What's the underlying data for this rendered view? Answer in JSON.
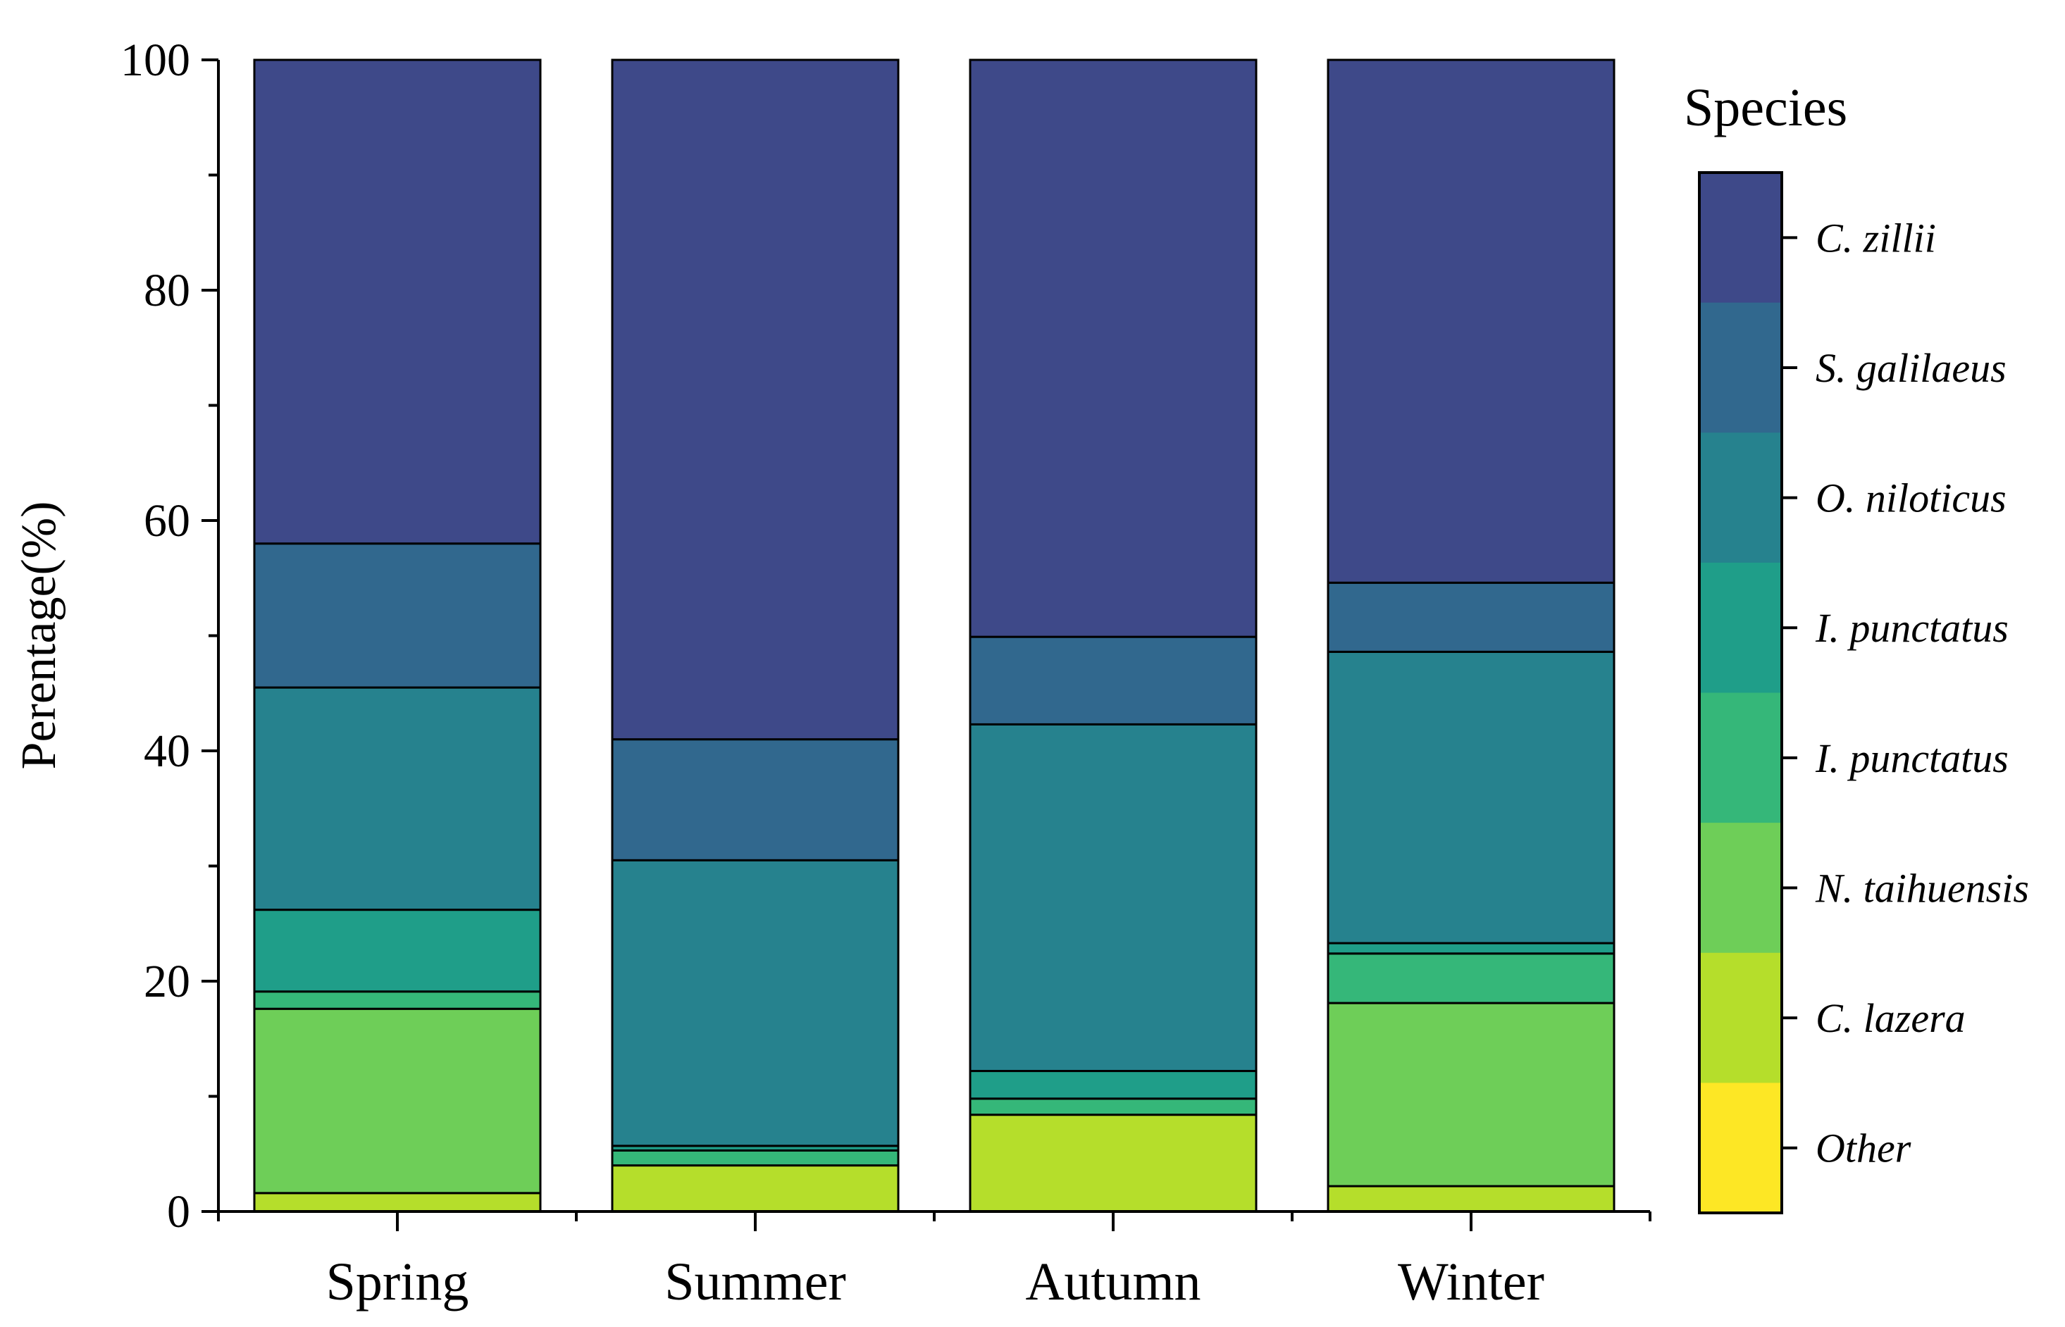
{
  "chart_data": {
    "type": "bar",
    "stacked": true,
    "title": "",
    "xlabel": "",
    "ylabel": "Perentage(%)",
    "ylim": [
      0,
      100
    ],
    "yticks": [
      0,
      20,
      40,
      60,
      80,
      100
    ],
    "categories": [
      "Spring",
      "Summer",
      "Autumn",
      "Winter"
    ],
    "series": [
      {
        "name": "Other",
        "color": "#fde725",
        "values": [
          0,
          0,
          0,
          0
        ]
      },
      {
        "name": "C. lazera",
        "color": "#b5de2b",
        "values": [
          1.6,
          4.0,
          8.4,
          2.2
        ]
      },
      {
        "name": "N. taihuensis",
        "color": "#6ece58",
        "values": [
          16.0,
          0,
          0,
          15.9
        ]
      },
      {
        "name": "I. punctatus",
        "color": "#35b779",
        "values": [
          1.5,
          1.3,
          1.4,
          4.3
        ]
      },
      {
        "name": "I. punctatus",
        "color": "#1f9e89",
        "values": [
          7.1,
          0.4,
          2.4,
          0.9
        ]
      },
      {
        "name": "O. niloticus",
        "color": "#26828e",
        "values": [
          19.3,
          24.8,
          30.1,
          25.3
        ]
      },
      {
        "name": "S. galilaeus",
        "color": "#31688e",
        "values": [
          12.5,
          10.5,
          7.6,
          6.0
        ]
      },
      {
        "name": "C. zillii",
        "color": "#3e4989",
        "values": [
          42.0,
          59.0,
          50.1,
          45.4
        ]
      }
    ],
    "legend": {
      "title": "Species",
      "placement": "right"
    }
  }
}
